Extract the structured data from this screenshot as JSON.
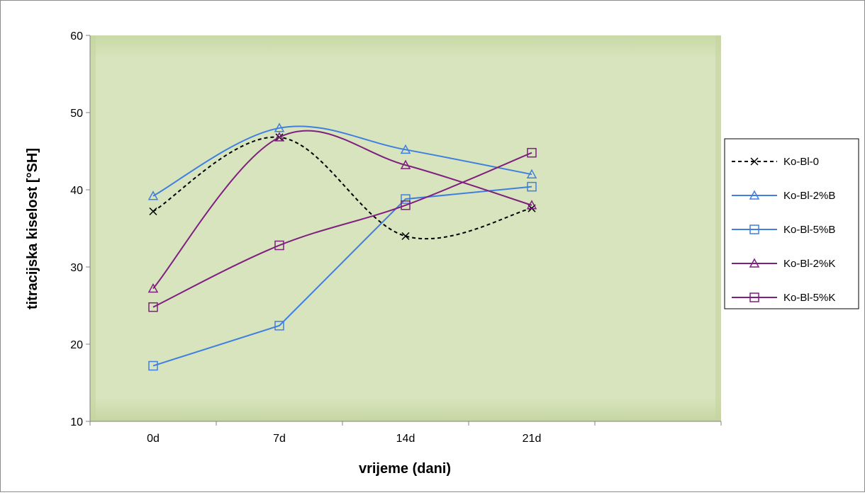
{
  "chart_data": {
    "type": "line",
    "title": "",
    "xlabel": "vrijeme (dani)",
    "ylabel": "titracijska kiselost [°SH]",
    "categories": [
      "0d",
      "7d",
      "14d",
      "21d"
    ],
    "ylim": [
      10,
      60
    ],
    "yticks": [
      10,
      20,
      30,
      40,
      50,
      60
    ],
    "grid": false,
    "legend_position": "right",
    "plot_background": "#d7e4bd",
    "series": [
      {
        "name": "Ko-Bl-0",
        "values": [
          37.2,
          46.8,
          34.0,
          37.6
        ],
        "color": "#000000",
        "marker": "x",
        "dashed": true,
        "smooth": true
      },
      {
        "name": "Ko-Bl-2%B",
        "values": [
          39.2,
          48.0,
          45.2,
          42.0
        ],
        "color": "#3f7fe0",
        "marker": "triangle",
        "dashed": false,
        "smooth": true
      },
      {
        "name": "Ko-Bl-5%B",
        "values": [
          17.2,
          22.4,
          38.8,
          40.4
        ],
        "color": "#3f7fe0",
        "marker": "square",
        "dashed": false,
        "smooth": false
      },
      {
        "name": "Ko-Bl-2%K",
        "values": [
          27.2,
          46.8,
          43.2,
          38.0
        ],
        "color": "#7f1f7f",
        "marker": "triangle",
        "dashed": false,
        "smooth": true
      },
      {
        "name": "Ko-Bl-5%K",
        "values": [
          24.8,
          32.8,
          38.0,
          44.8
        ],
        "color": "#7f1f7f",
        "marker": "square",
        "dashed": false,
        "smooth": true
      }
    ]
  }
}
